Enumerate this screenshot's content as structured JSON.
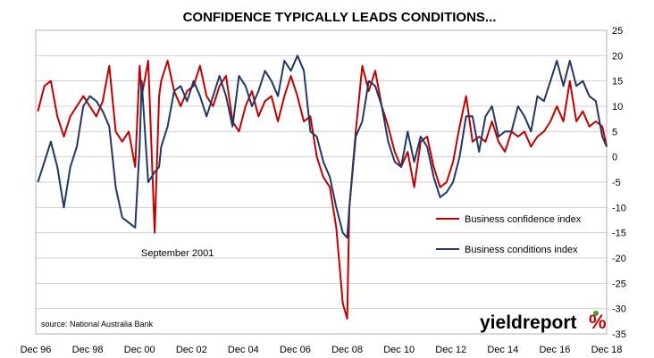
{
  "chart_data": {
    "type": "line",
    "title": "CONFIDENCE TYPICALLY LEADS CONDITIONS...",
    "xlabel": "",
    "ylabel": "",
    "x_ticks": [
      "Dec 96",
      "Dec 98",
      "Dec 00",
      "Dec 02",
      "Dec 04",
      "Dec 06",
      "Dec 08",
      "Dec 10",
      "Dec 12",
      "Dec 14",
      "Dec 16",
      "Dec 18"
    ],
    "xlim": [
      1996.917,
      2018.917
    ],
    "ylim": [
      -35,
      25
    ],
    "y_ticks": [
      25,
      20,
      15,
      10,
      5,
      0,
      -5,
      -10,
      -15,
      -20,
      -25,
      -30,
      -35
    ],
    "y_axis_side": "right",
    "grid": "horizontal",
    "legend_position": "center-right",
    "annotation": "September 2001",
    "source": "source: National Australia Bank",
    "logo": {
      "text_main": "yieldreport",
      "text_mark": "%",
      "mark_color": "#c00000",
      "dot_color": "#4c9a2a"
    },
    "colors": {
      "confidence": "#c00000",
      "conditions": "#1f3864",
      "grid": "#d0d0d0"
    },
    "series": [
      {
        "name": "Business confidence index",
        "color": "#c00000",
        "x": [
          1997.0,
          1997.25,
          1997.5,
          1997.75,
          1998.0,
          1998.25,
          1998.5,
          1998.75,
          1999.0,
          1999.25,
          1999.5,
          1999.75,
          2000.0,
          2000.25,
          2000.5,
          2000.75,
          2000.92,
          2001.0,
          2001.25,
          2001.5,
          2001.67,
          2001.75,
          2002.0,
          2002.25,
          2002.5,
          2002.75,
          2003.0,
          2003.25,
          2003.5,
          2003.75,
          2004.0,
          2004.25,
          2004.5,
          2004.75,
          2005.0,
          2005.25,
          2005.5,
          2005.75,
          2006.0,
          2006.25,
          2006.5,
          2006.75,
          2007.0,
          2007.25,
          2007.5,
          2007.75,
          2008.0,
          2008.25,
          2008.5,
          2008.75,
          2008.92,
          2009.0,
          2009.25,
          2009.5,
          2009.75,
          2010.0,
          2010.25,
          2010.5,
          2010.75,
          2011.0,
          2011.25,
          2011.5,
          2011.75,
          2012.0,
          2012.25,
          2012.5,
          2012.75,
          2013.0,
          2013.25,
          2013.5,
          2013.75,
          2014.0,
          2014.25,
          2014.5,
          2014.75,
          2015.0,
          2015.25,
          2015.5,
          2015.75,
          2016.0,
          2016.25,
          2016.5,
          2016.75,
          2017.0,
          2017.25,
          2017.5,
          2017.75,
          2018.0,
          2018.25,
          2018.5,
          2018.75,
          2018.92
        ],
        "y": [
          9,
          14,
          15,
          8,
          4,
          8,
          10,
          12,
          10,
          8,
          11,
          18,
          5,
          3,
          5,
          -2,
          18,
          12,
          19,
          -15,
          12,
          15,
          19,
          13,
          10,
          13,
          14,
          18,
          12,
          10,
          14,
          16,
          7,
          5,
          10,
          13,
          8,
          11,
          12,
          7,
          12,
          16,
          12,
          7,
          8,
          0,
          -4,
          -6,
          -14,
          -29,
          -32,
          -10,
          5,
          18,
          13,
          17,
          10,
          6,
          1,
          -2,
          1,
          -6,
          3,
          4,
          -2,
          -6,
          -5,
          -1,
          6,
          12,
          3,
          4,
          3,
          7,
          3,
          1,
          5,
          4,
          5,
          2,
          4,
          5,
          7,
          10,
          7,
          15,
          7,
          9,
          6,
          7,
          6,
          2
        ]
      },
      {
        "name": "Business conditions index",
        "color": "#1f3864",
        "x": [
          1997.0,
          1997.25,
          1997.5,
          1997.75,
          1998.0,
          1998.25,
          1998.5,
          1998.75,
          1999.0,
          1999.25,
          1999.5,
          1999.75,
          2000.0,
          2000.25,
          2000.5,
          2000.75,
          2000.92,
          2001.0,
          2001.25,
          2001.5,
          2001.67,
          2001.75,
          2002.0,
          2002.25,
          2002.5,
          2002.75,
          2003.0,
          2003.25,
          2003.5,
          2003.75,
          2004.0,
          2004.25,
          2004.5,
          2004.75,
          2005.0,
          2005.25,
          2005.5,
          2005.75,
          2006.0,
          2006.25,
          2006.5,
          2006.75,
          2007.0,
          2007.25,
          2007.5,
          2007.75,
          2008.0,
          2008.25,
          2008.5,
          2008.75,
          2008.92,
          2009.0,
          2009.25,
          2009.5,
          2009.75,
          2010.0,
          2010.25,
          2010.5,
          2010.75,
          2011.0,
          2011.25,
          2011.5,
          2011.75,
          2012.0,
          2012.25,
          2012.5,
          2012.75,
          2013.0,
          2013.25,
          2013.5,
          2013.75,
          2014.0,
          2014.25,
          2014.5,
          2014.75,
          2015.0,
          2015.25,
          2015.5,
          2015.75,
          2016.0,
          2016.25,
          2016.5,
          2016.75,
          2017.0,
          2017.25,
          2017.5,
          2017.75,
          2018.0,
          2018.25,
          2018.5,
          2018.75,
          2018.92
        ],
        "y": [
          -5,
          -1,
          3,
          -2,
          -10,
          -2,
          2,
          10,
          12,
          11,
          9,
          6,
          -6,
          -12,
          -13,
          -14,
          2,
          15,
          -5,
          -3,
          -2,
          2,
          6,
          13,
          14,
          11,
          15,
          12,
          8,
          12,
          16,
          12,
          6,
          16,
          14,
          10,
          13,
          17,
          15,
          12,
          19,
          17,
          20,
          17,
          5,
          4,
          -1,
          -4,
          -10,
          -15,
          -16,
          -10,
          4,
          7,
          15,
          14,
          10,
          3,
          -1,
          -2,
          5,
          -1,
          4,
          2,
          -4,
          -8,
          -7,
          -5,
          0,
          8,
          8,
          1,
          8,
          10,
          4,
          5,
          5,
          10,
          8,
          5,
          12,
          11,
          15,
          19,
          14,
          19,
          14,
          15,
          12,
          11,
          4,
          2
        ]
      }
    ]
  }
}
